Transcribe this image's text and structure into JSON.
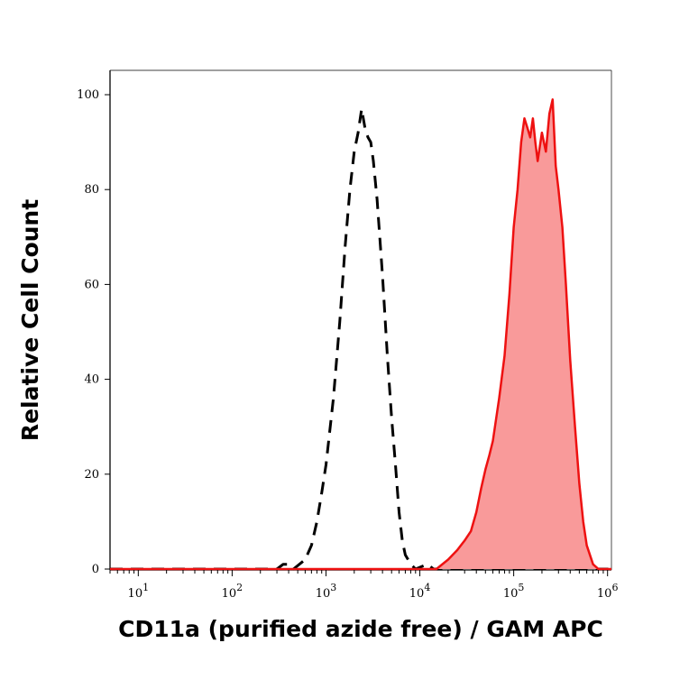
{
  "chart_data": {
    "type": "area",
    "xlabel": "CD11a (purified azide free) / GAM APC",
    "ylabel": "Relative Cell Count",
    "x_scale": "log",
    "xlim": [
      5,
      1100000
    ],
    "ylim": [
      0,
      105
    ],
    "y_ticks": [
      0,
      20,
      40,
      60,
      80,
      100
    ],
    "x_ticks": [
      {
        "value": 10,
        "base": "10",
        "exp": "1"
      },
      {
        "value": 100,
        "base": "10",
        "exp": "2"
      },
      {
        "value": 1000,
        "base": "10",
        "exp": "3"
      },
      {
        "value": 10000,
        "base": "10",
        "exp": "4"
      },
      {
        "value": 100000,
        "base": "10",
        "exp": "5"
      },
      {
        "value": 1000000,
        "base": "10",
        "exp": "6"
      }
    ],
    "grid": false,
    "series": [
      {
        "style": "dashed",
        "color": "#000000",
        "fill": "none",
        "points": [
          [
            5,
            0
          ],
          [
            300,
            0
          ],
          [
            350,
            1
          ],
          [
            400,
            1
          ],
          [
            450,
            0
          ],
          [
            600,
            2
          ],
          [
            700,
            5
          ],
          [
            800,
            10
          ],
          [
            900,
            16
          ],
          [
            1000,
            22
          ],
          [
            1200,
            36
          ],
          [
            1400,
            52
          ],
          [
            1600,
            68
          ],
          [
            1800,
            80
          ],
          [
            2000,
            88
          ],
          [
            2200,
            92
          ],
          [
            2400,
            97
          ],
          [
            2600,
            93
          ],
          [
            2800,
            91
          ],
          [
            3000,
            90
          ],
          [
            3200,
            86
          ],
          [
            3500,
            78
          ],
          [
            4000,
            62
          ],
          [
            4500,
            45
          ],
          [
            5000,
            32
          ],
          [
            5500,
            22
          ],
          [
            6000,
            12
          ],
          [
            6500,
            6
          ],
          [
            7000,
            3
          ],
          [
            8000,
            1
          ],
          [
            9000,
            0
          ],
          [
            12000,
            1
          ],
          [
            14000,
            0
          ],
          [
            1100000,
            0
          ]
        ]
      },
      {
        "style": "solid",
        "color": "#ee1111",
        "fill": "#f99a9a",
        "points": [
          [
            5,
            0
          ],
          [
            15000,
            0
          ],
          [
            20000,
            2
          ],
          [
            25000,
            4
          ],
          [
            30000,
            6
          ],
          [
            35000,
            8
          ],
          [
            40000,
            12
          ],
          [
            45000,
            17
          ],
          [
            50000,
            21
          ],
          [
            55000,
            24
          ],
          [
            60000,
            27
          ],
          [
            70000,
            36
          ],
          [
            80000,
            45
          ],
          [
            90000,
            58
          ],
          [
            100000,
            72
          ],
          [
            110000,
            80
          ],
          [
            120000,
            90
          ],
          [
            130000,
            95
          ],
          [
            140000,
            93
          ],
          [
            150000,
            91
          ],
          [
            160000,
            95
          ],
          [
            170000,
            90
          ],
          [
            180000,
            86
          ],
          [
            200000,
            92
          ],
          [
            220000,
            88
          ],
          [
            240000,
            96
          ],
          [
            260000,
            99
          ],
          [
            280000,
            85
          ],
          [
            300000,
            80
          ],
          [
            330000,
            72
          ],
          [
            360000,
            60
          ],
          [
            400000,
            44
          ],
          [
            450000,
            30
          ],
          [
            500000,
            18
          ],
          [
            550000,
            10
          ],
          [
            600000,
            5
          ],
          [
            700000,
            1
          ],
          [
            800000,
            0
          ],
          [
            1100000,
            0
          ]
        ]
      }
    ]
  }
}
